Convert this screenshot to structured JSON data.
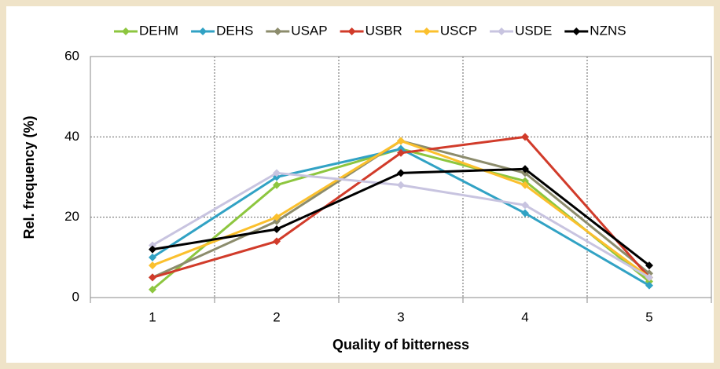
{
  "chart_data": {
    "type": "line",
    "x_label": "Quality of bitterness",
    "y_label": "Rel. frequency (%)",
    "categories": [
      "1",
      "2",
      "3",
      "4",
      "5"
    ],
    "series": [
      {
        "name": "DEHM",
        "color": "#8dc63f",
        "values": [
          2,
          28,
          37,
          29,
          4
        ]
      },
      {
        "name": "DEHS",
        "color": "#31a2c4",
        "values": [
          10,
          30,
          37,
          21,
          3
        ]
      },
      {
        "name": "USAP",
        "color": "#8c8c6c",
        "values": [
          5,
          19,
          39,
          31,
          6
        ]
      },
      {
        "name": "USBR",
        "color": "#d13b2a",
        "values": [
          5,
          14,
          36,
          40,
          5
        ]
      },
      {
        "name": "USCP",
        "color": "#fbc02d",
        "values": [
          8,
          20,
          39,
          28,
          5
        ]
      },
      {
        "name": "USDE",
        "color": "#c8c4e0",
        "values": [
          13,
          31,
          28,
          23,
          5
        ]
      },
      {
        "name": "NZNS",
        "color": "#000000",
        "values": [
          12,
          17,
          31,
          32,
          8
        ]
      }
    ],
    "ylim": [
      0,
      60
    ],
    "yticks": [
      0,
      20,
      40,
      60
    ],
    "grid": true,
    "legend": "top"
  }
}
